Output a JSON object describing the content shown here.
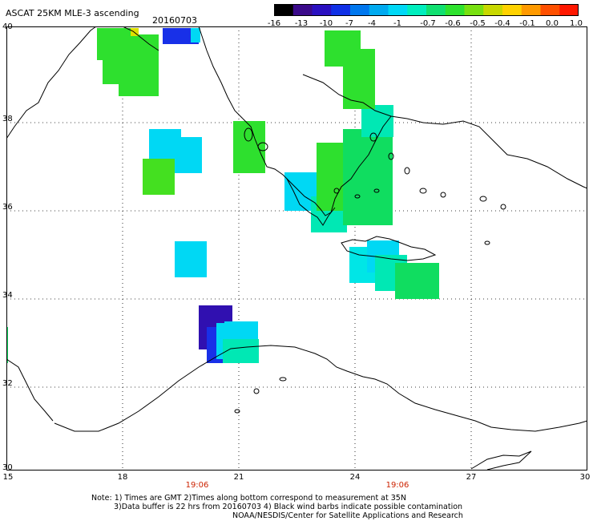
{
  "header": {
    "title": "ASCAT 25KM MLE-3 ascending",
    "date": "20160703"
  },
  "colorbar": {
    "labels": [
      "-16",
      "-13",
      "-10",
      "-7",
      "-4",
      "-1",
      "-0.7",
      "-0.6",
      "-0.5",
      "-0.4",
      "-0.1",
      "0.0",
      "1.0"
    ],
    "colors": [
      "#000000",
      "#3a0a8a",
      "#2a10c0",
      "#1030e6",
      "#0077ee",
      "#00aaf0",
      "#00d8f6",
      "#00eebe",
      "#10e070",
      "#2ee22e",
      "#78e010",
      "#c8d800",
      "#ffd200",
      "#ff9a00",
      "#ff5000",
      "#ff1800"
    ]
  },
  "map": {
    "lat_ticks": [
      "40",
      "38",
      "36",
      "34",
      "32",
      "30"
    ],
    "lon_ticks": [
      "15",
      "18",
      "21",
      "24",
      "27",
      "30"
    ],
    "time_labels": [
      "19:06",
      "19:06"
    ]
  },
  "notes": {
    "line1": "Note: 1) Times are GMT 2)Times along bottom correspond to measurement at 35N",
    "line2": "3)Data buffer is 22 hrs from 20160703 4) Black wind barbs indicate possible contamination",
    "line3": "NOAA/NESDIS/Center for Satellite Applications and Research"
  },
  "swaths": {
    "colors": {
      "green": "#2ee02e",
      "green2": "#10dd60",
      "lime": "#44e020",
      "teal": "#00e8b4",
      "cyan": "#00d8f4",
      "cyan2": "#00e6e6",
      "blue": "#1830e8",
      "violet": "#3010b0",
      "yellow": "#e0e000"
    }
  }
}
